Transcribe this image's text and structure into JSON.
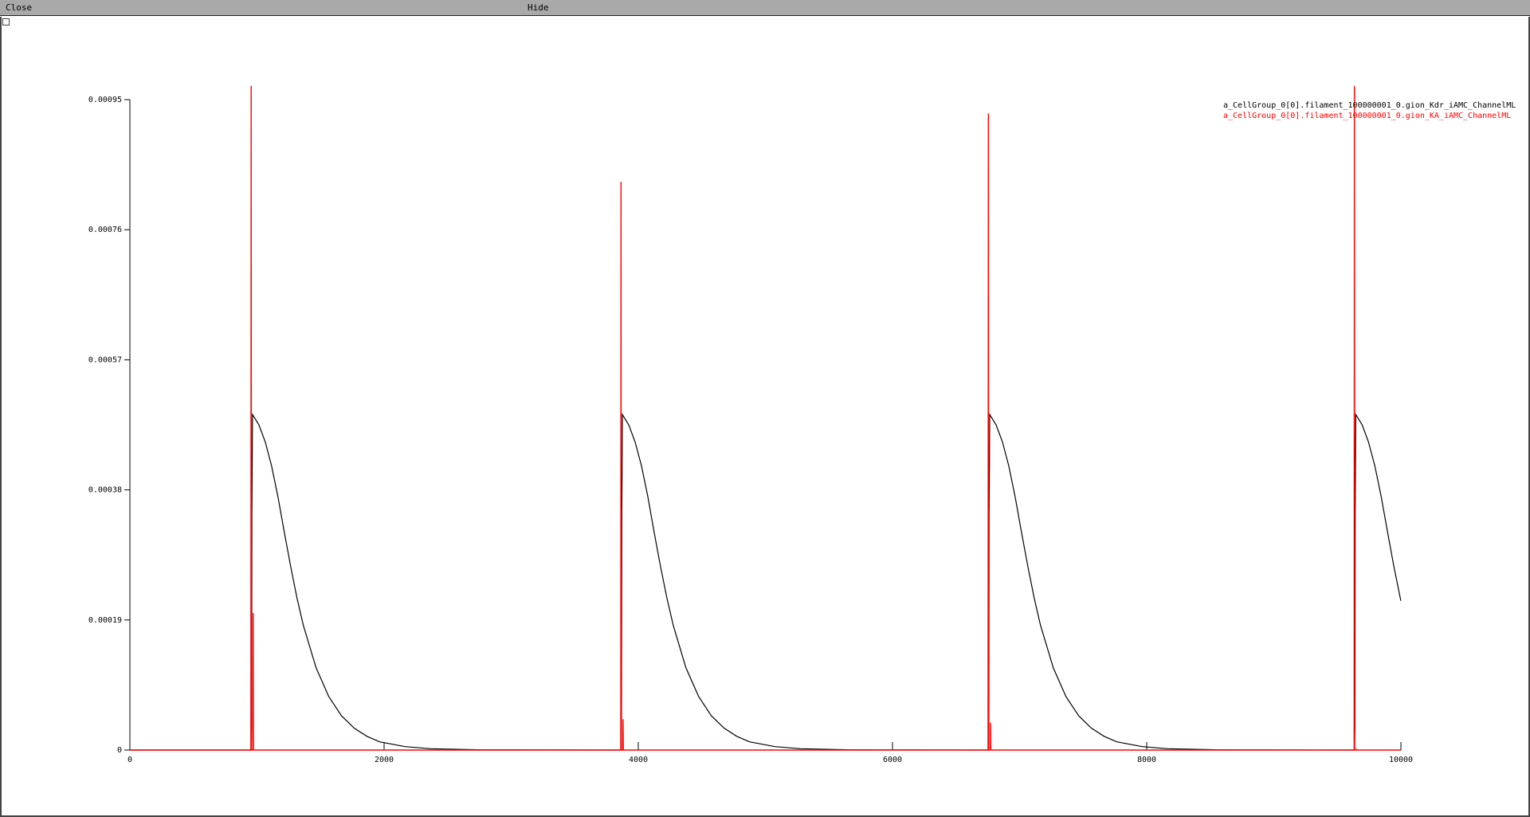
{
  "toolbar": {
    "close_label": "Close",
    "hide_label": "Hide"
  },
  "chart_data": {
    "type": "line",
    "title": "",
    "xlabel": "",
    "ylabel": "",
    "xlim": [
      0,
      10000
    ],
    "ylim": [
      0,
      0.00095
    ],
    "x_ticks": [
      0,
      2000,
      4000,
      6000,
      8000,
      10000
    ],
    "x_tick_labels": [
      "0",
      "2000",
      "4000",
      "6000",
      "8000",
      "10000"
    ],
    "y_ticks": [
      0,
      0.00019,
      0.00038,
      0.00057,
      0.00076,
      0.00095
    ],
    "y_tick_labels": [
      "0",
      "0.00019",
      "0.00038",
      "0.00057",
      "0.00076",
      "0.00095"
    ],
    "grid": false,
    "legend_position": "top-right",
    "spike_times": [
      960,
      3870,
      6760,
      9640
    ],
    "series": [
      {
        "name": "a_CellGroup_0[0].filament_100000001_0.gion_Kdr_iAMC_ChannelML",
        "color": "#000000",
        "peak": 0.00049,
        "decay": [
          [
            0,
            0.00049
          ],
          [
            50,
            0.000475
          ],
          [
            100,
            0.00045
          ],
          [
            150,
            0.000415
          ],
          [
            200,
            0.00037
          ],
          [
            250,
            0.000318
          ],
          [
            300,
            0.000268
          ],
          [
            350,
            0.000222
          ],
          [
            400,
            0.000182
          ],
          [
            500,
            0.00012
          ],
          [
            600,
            7.8e-05
          ],
          [
            700,
            5e-05
          ],
          [
            800,
            3.2e-05
          ],
          [
            900,
            2e-05
          ],
          [
            1000,
            1.2e-05
          ],
          [
            1200,
            5e-06
          ],
          [
            1400,
            2e-06
          ],
          [
            1800,
            4e-07
          ]
        ]
      },
      {
        "name": "a_CellGroup_0[0].filament_100000001_0.gion_KA_iAMC_ChannelML",
        "color": "#ff0000",
        "spike_peaks": [
          0.00097,
          0.00083,
          0.00093,
          0.00097
        ],
        "spike_secondary": [
          0.0002,
          4.5e-05,
          4e-05,
          1.5e-06
        ]
      }
    ]
  }
}
